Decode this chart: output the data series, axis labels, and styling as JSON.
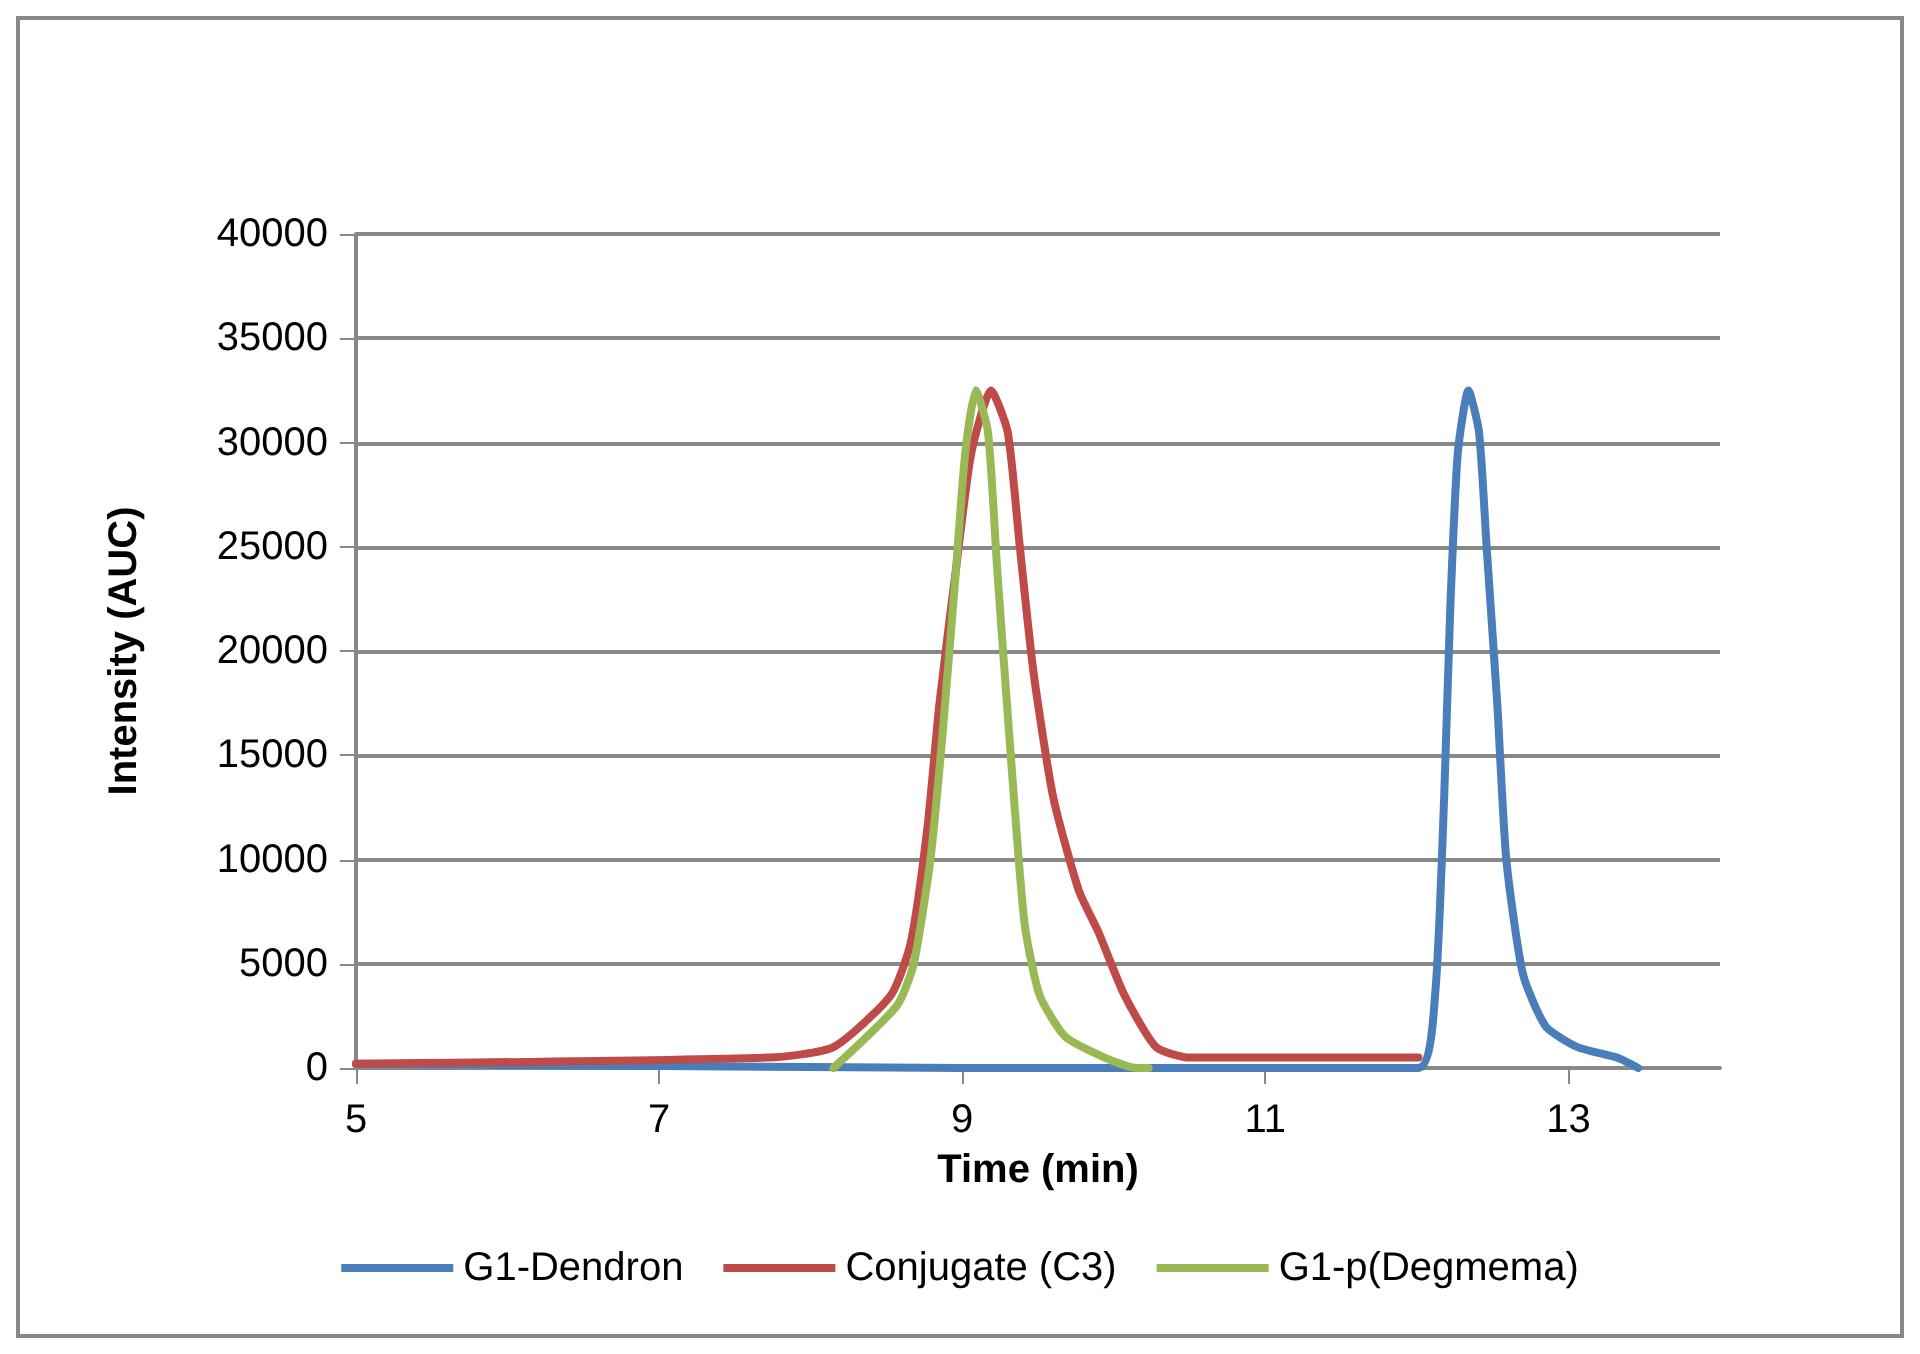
{
  "chart_data": {
    "type": "line",
    "xlabel": "Time (min)",
    "ylabel": "Intensity (AUC)",
    "xlim": [
      5,
      14
    ],
    "xticks": [
      5,
      7,
      9,
      11,
      13
    ],
    "ylim": [
      0,
      40000
    ],
    "yticks": [
      0,
      5000,
      10000,
      15000,
      20000,
      25000,
      30000,
      35000,
      40000
    ],
    "grid": "y",
    "legend": "bottom",
    "marker": "none",
    "line_style": "solid",
    "series": [
      {
        "name": "G1-Dendron",
        "color": "#4a7ebb",
        "x": [
          5,
          7,
          9,
          12.01,
          12.12,
          12.18,
          12.22,
          12.27,
          12.34,
          12.41,
          12.46,
          12.53,
          12.59,
          12.7,
          12.85,
          13.06,
          13.32,
          13.46
        ],
        "values": [
          200,
          100,
          0,
          0,
          3500,
          13000,
          22000,
          29500,
          32500,
          30500,
          25000,
          17500,
          10000,
          4500,
          2000,
          1000,
          500,
          0
        ]
      },
      {
        "name": "Conjugate (C3)",
        "color": "#be4b48",
        "x": [
          5,
          7.72,
          8.15,
          8.53,
          8.66,
          8.77,
          8.85,
          8.96,
          9.06,
          9.19,
          9.3,
          9.38,
          9.47,
          9.6,
          9.77,
          9.9,
          10.07,
          10.28,
          10.5,
          12.01
        ],
        "values": [
          200,
          500,
          1000,
          3500,
          6000,
          11500,
          17500,
          24000,
          29500,
          32500,
          30500,
          25000,
          19000,
          13000,
          8500,
          6500,
          3500,
          1000,
          500,
          500
        ]
      },
      {
        "name": "G1-p(Degmema)",
        "color": "#98b954",
        "x": [
          8.15,
          8.57,
          8.68,
          8.79,
          8.87,
          8.96,
          9.02,
          9.09,
          9.17,
          9.23,
          9.31,
          9.41,
          9.51,
          9.68,
          9.94,
          10.15,
          10.23
        ],
        "values": [
          0,
          3000,
          5000,
          10000,
          16000,
          24000,
          29500,
          32500,
          30500,
          24000,
          16000,
          7000,
          3500,
          1500,
          500,
          0,
          0
        ]
      }
    ]
  }
}
